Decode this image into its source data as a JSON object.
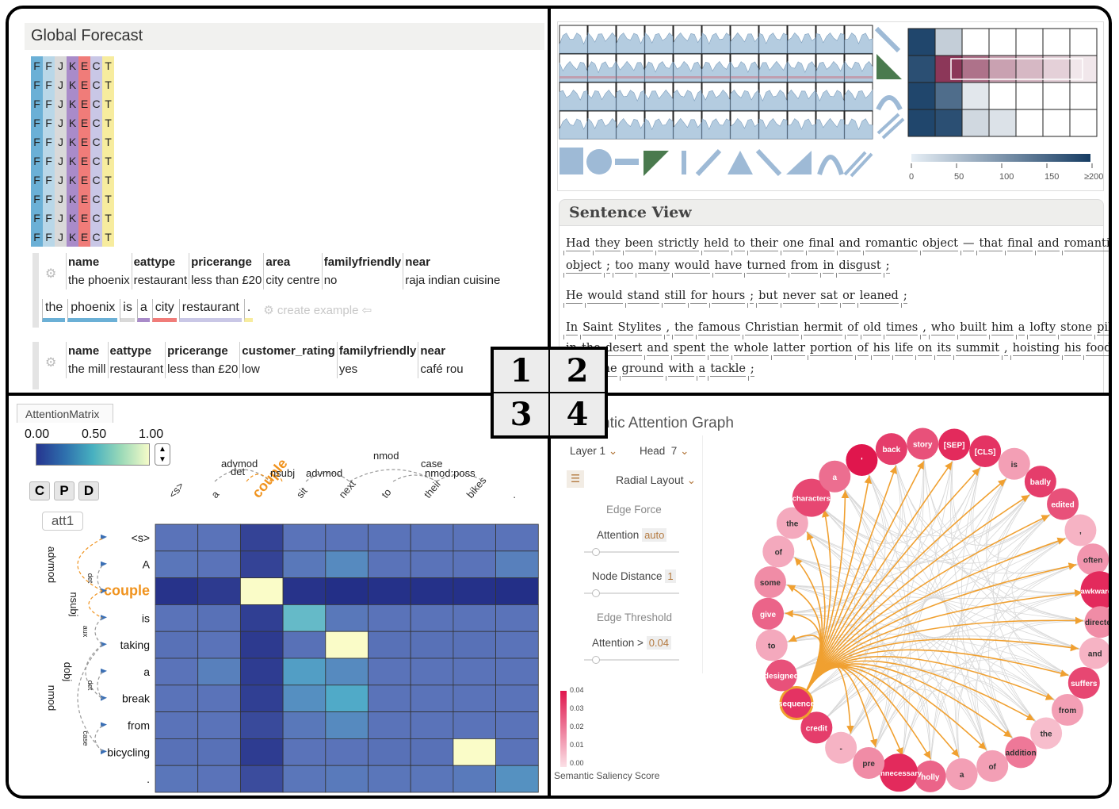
{
  "badge": [
    "1",
    "2",
    "3",
    "4"
  ],
  "q1": {
    "title": "Global Forecast",
    "grid_letters": [
      "F",
      "F",
      "J",
      "K",
      "E",
      "C",
      "T"
    ],
    "grid_colors": [
      "#6bb0d6",
      "#b9d7e8",
      "#d9d9d9",
      "#a98bc9",
      "#f07c79",
      "#c9c7e6",
      "#f7ec9e"
    ],
    "grid_rows": 10,
    "table1": {
      "headers": [
        "name",
        "eattype",
        "pricerange",
        "area",
        "familyfriendly",
        "near"
      ],
      "values": [
        "the phoenix",
        "restaurant",
        "less than £20",
        "city centre",
        "no",
        "raja indian cuisine"
      ]
    },
    "tokens": [
      {
        "text": "the",
        "color": "#6bb0d6"
      },
      {
        "text": "phoenix",
        "color": "#6bb0d6"
      },
      {
        "text": "is",
        "color": "#d9d9d9"
      },
      {
        "text": "a",
        "color": "#a98bc9"
      },
      {
        "text": "city",
        "color": "#f07c79"
      },
      {
        "text": "restaurant",
        "color": "#c9c7e6"
      },
      {
        "text": ".",
        "color": "#f7ec9e"
      }
    ],
    "create_example": "create example ⇦",
    "table2": {
      "headers": [
        "name",
        "eattype",
        "pricerange",
        "customer_rating",
        "familyfriendly",
        "near"
      ],
      "values": [
        "the mill",
        "restaurant",
        "less than £20",
        "low",
        "yes",
        "café rou"
      ]
    }
  },
  "q2": {
    "matrix_ticks": [
      "0",
      "50",
      "100",
      "150",
      "≥200"
    ],
    "sentence_title": "Sentence View",
    "lines": [
      [
        "Had",
        "they",
        "been",
        "strictly",
        "held",
        "to",
        "their",
        "one",
        "final",
        "and",
        "romantic",
        "object",
        "—",
        "that",
        "final",
        "and",
        "romantic"
      ],
      [
        "object",
        ";",
        "too",
        "many",
        "would",
        "have",
        "turned",
        "from",
        "in",
        "disgust",
        ";"
      ],
      [
        "He",
        "would",
        "stand",
        "still",
        "for",
        "hours",
        ";",
        "but",
        "never",
        "sat",
        "or",
        "leaned",
        ";"
      ],
      [
        "In",
        "Saint",
        "Stylites",
        ",",
        "the",
        "famous",
        "Christian",
        "hermit",
        "of",
        "old",
        "times",
        ",",
        "who",
        "built",
        "him",
        "a",
        "lofty",
        "stone",
        "pillar"
      ],
      [
        "in",
        "the",
        "desert",
        "and",
        "spent",
        "the",
        "whole",
        "latter",
        "portion",
        "of",
        "his",
        "life",
        "on",
        "its",
        "summit",
        ",",
        "hoisting",
        "his",
        "food"
      ],
      [
        "from",
        "the",
        "ground",
        "with",
        "a",
        "tackle",
        ";"
      ]
    ]
  },
  "q3": {
    "tab": "AttentionMatrix",
    "scale_labels": [
      "0.00",
      "0.50",
      "1.00"
    ],
    "buttons": [
      "C",
      "P",
      "D"
    ],
    "att_label": "att1",
    "col_tokens": [
      "<s>",
      "a",
      "couple",
      "sit",
      "next",
      "to",
      "their",
      "bikes",
      "."
    ],
    "row_tokens": [
      "<s>",
      "A",
      "couple",
      "is",
      "taking",
      "a",
      "break",
      "from",
      "bicycling",
      "."
    ],
    "top_arcs": [
      "advmod",
      "det",
      "nsubj",
      "advmod",
      "nmod",
      "case",
      "nmod:poss"
    ],
    "left_arcs": [
      "advmod",
      "det",
      "nsubj",
      "aux",
      "dobj",
      "det",
      "nmod",
      "case"
    ],
    "matrix": [
      [
        0.33,
        0.33,
        0.12,
        0.33,
        0.33,
        0.33,
        0.33,
        0.33,
        0.33
      ],
      [
        0.34,
        0.33,
        0.12,
        0.35,
        0.42,
        0.33,
        0.33,
        0.33,
        0.38
      ],
      [
        0.05,
        0.08,
        1.0,
        0.05,
        0.03,
        0.04,
        0.04,
        0.04,
        0.03
      ],
      [
        0.33,
        0.32,
        0.1,
        0.62,
        0.35,
        0.33,
        0.33,
        0.33,
        0.33
      ],
      [
        0.32,
        0.33,
        0.08,
        0.32,
        1.0,
        0.32,
        0.32,
        0.32,
        0.33
      ],
      [
        0.33,
        0.38,
        0.09,
        0.5,
        0.42,
        0.33,
        0.33,
        0.33,
        0.33
      ],
      [
        0.33,
        0.33,
        0.1,
        0.44,
        0.55,
        0.33,
        0.33,
        0.33,
        0.33
      ],
      [
        0.33,
        0.33,
        0.15,
        0.35,
        0.42,
        0.33,
        0.33,
        0.33,
        0.33
      ],
      [
        0.32,
        0.32,
        0.09,
        0.33,
        0.33,
        0.32,
        0.32,
        1.0,
        0.33
      ],
      [
        0.34,
        0.33,
        0.16,
        0.34,
        0.36,
        0.34,
        0.34,
        0.36,
        0.45
      ]
    ]
  },
  "q4": {
    "title": "Semantic Attention Graph",
    "title_visible": "ntic Attention Graph",
    "layer_label": "Layer",
    "layer_value": "1",
    "head_label": "Head",
    "head_value": "7",
    "layout": "Radial Layout",
    "edge_force": "Edge Force",
    "attention_label": "Attention",
    "attention_value": "auto",
    "node_distance_label": "Node Distance",
    "node_distance_value": "1",
    "edge_threshold": "Edge Threshold",
    "threshold_label": "Attention >",
    "threshold_value": "0.04",
    "legend_ticks": [
      "0.04",
      "0.03",
      "0.02",
      "0.01",
      "0.00"
    ],
    "legend_label": "Semantic Saliency Score",
    "nodes": [
      {
        "label": "[SEP]",
        "s": 0.9
      },
      {
        "label": "[CLS]",
        "s": 0.85
      },
      {
        "label": "is",
        "s": 0.3
      },
      {
        "label": "badly",
        "s": 0.8
      },
      {
        "label": "edited",
        "s": 0.7
      },
      {
        "label": ",",
        "s": 0.2
      },
      {
        "label": "often",
        "s": 0.35
      },
      {
        "label": "awkwardly",
        "s": 0.9
      },
      {
        "label": "directed",
        "s": 0.4
      },
      {
        "label": "and",
        "s": 0.2
      },
      {
        "label": "suffers",
        "s": 0.75
      },
      {
        "label": "from",
        "s": 0.3
      },
      {
        "label": "the",
        "s": 0.15
      },
      {
        "label": "addition",
        "s": 0.5
      },
      {
        "label": "of",
        "s": 0.3
      },
      {
        "label": "a",
        "s": 0.3
      },
      {
        "label": "holly",
        "s": 0.6
      },
      {
        "label": "unnecessary",
        "s": 0.9
      },
      {
        "label": "pre",
        "s": 0.4
      },
      {
        "label": "-",
        "s": 0.2
      },
      {
        "label": "credit",
        "s": 0.8
      },
      {
        "label": "sequence",
        "s": 0.85
      },
      {
        "label": "designed",
        "s": 0.7
      },
      {
        "label": "to",
        "s": 0.25
      },
      {
        "label": "give",
        "s": 0.6
      },
      {
        "label": "some",
        "s": 0.4
      },
      {
        "label": "of",
        "s": 0.25
      },
      {
        "label": "the",
        "s": 0.25
      },
      {
        "label": "characters",
        "s": 0.75
      },
      {
        "label": "a",
        "s": 0.55
      },
      {
        "label": "'",
        "s": 1.0
      },
      {
        "label": "back",
        "s": 0.8
      },
      {
        "label": "story",
        "s": 0.7
      }
    ]
  }
}
